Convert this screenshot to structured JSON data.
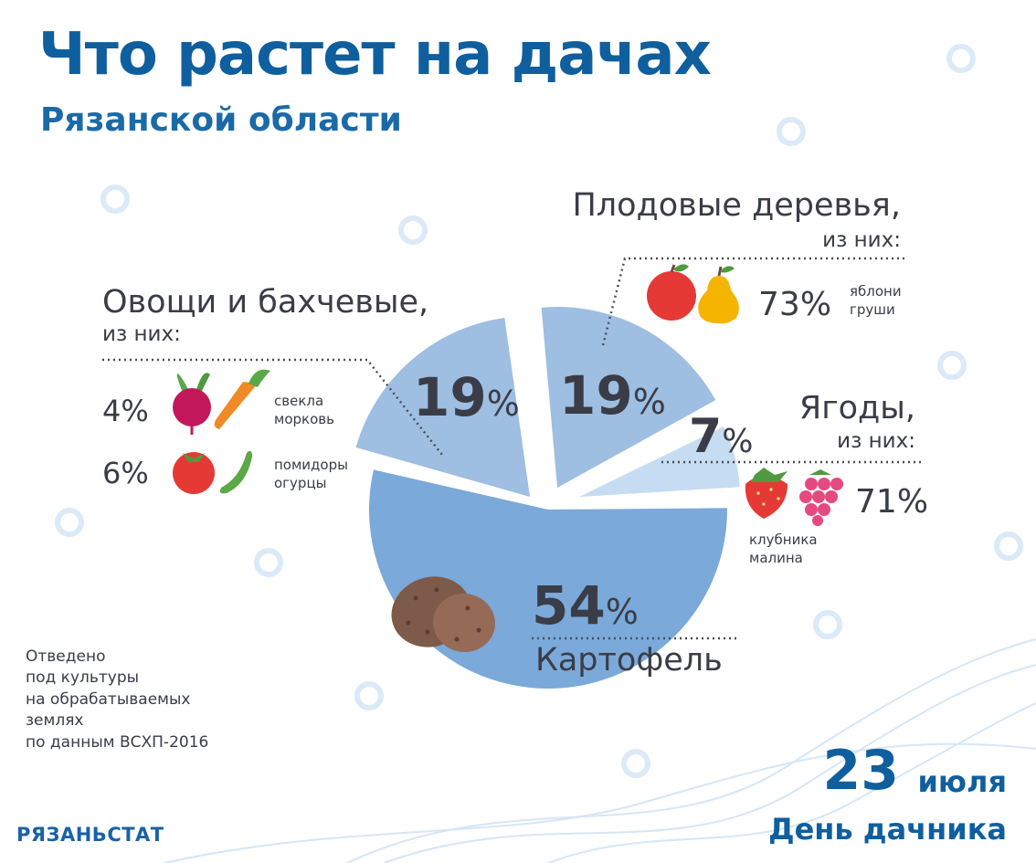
{
  "title": "Что растет на дачах",
  "subtitle": "Рязанской области",
  "chart_data": {
    "type": "pie",
    "categories": [
      "Картофель",
      "Овощи и бахчевые",
      "Плодовые деревья",
      "Ягоды"
    ],
    "values": [
      54,
      19,
      19,
      7
    ],
    "unit": "%",
    "colors": [
      "#7ba9d9",
      "#9ebee2",
      "#9ebee2",
      "#c6dcf2"
    ]
  },
  "slices": {
    "potato": {
      "pct": "54",
      "label": "Картофель"
    },
    "vegetables": {
      "pct": "19",
      "label": "Овощи и бахчевые,",
      "sub": "из них:",
      "details": [
        {
          "pct": "4",
          "crops": [
            "свекла",
            "морковь"
          ]
        },
        {
          "pct": "6",
          "crops": [
            "помидоры",
            "огурцы"
          ]
        }
      ]
    },
    "trees": {
      "pct": "19",
      "label": "Плодовые деревья,",
      "sub": "из них:",
      "detail": {
        "pct": "73",
        "crops": [
          "яблони",
          "груши"
        ]
      }
    },
    "berries": {
      "pct": "7",
      "label": "Ягоды,",
      "sub": "из них:",
      "detail": {
        "pct": "71",
        "crops": [
          "клубника",
          "малина"
        ]
      }
    }
  },
  "percent_sign": "%",
  "note": [
    "Отведено",
    "под культуры",
    "на обрабатываемых",
    "землях",
    "по данным ВСХП-2016"
  ],
  "org": "РЯЗАНЬСТАТ",
  "date": {
    "day": "23",
    "month": "июля"
  },
  "holiday": "День дачника",
  "icons": [
    "potato-icon",
    "beet-icon",
    "carrot-icon",
    "tomato-icon",
    "cucumber-icon",
    "apple-icon",
    "pear-icon",
    "strawberry-icon",
    "raspberry-icon"
  ]
}
